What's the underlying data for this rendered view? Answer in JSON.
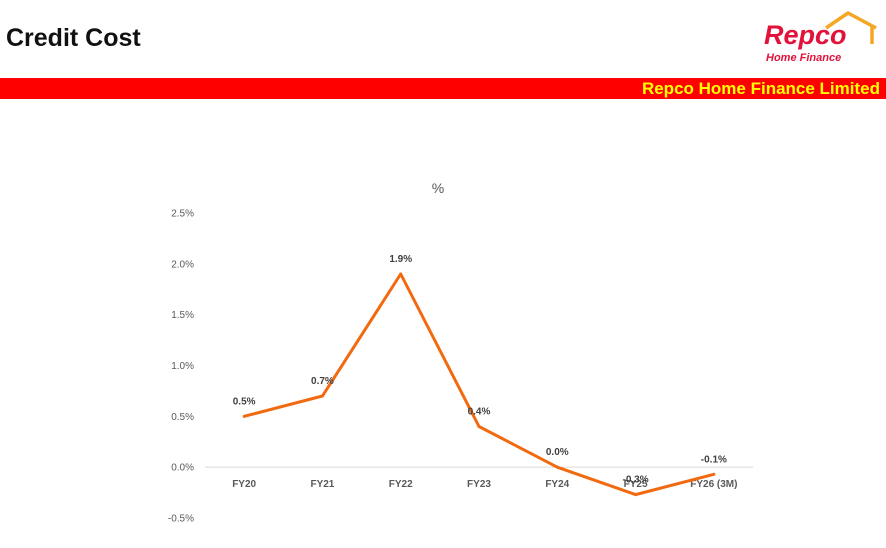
{
  "header": {
    "title": "Credit Cost",
    "company_band": "Repco Home Finance Limited"
  },
  "logo": {
    "name": "Repco",
    "tagline": "Home Finance",
    "icon": "house-roof-icon"
  },
  "colors": {
    "band": "#ff0000",
    "band_text": "#ffff00",
    "brand_red": "#e2123a",
    "line": "#f26a10"
  },
  "chart_data": {
    "type": "line",
    "title": "%",
    "categories": [
      "FY20",
      "FY21",
      "FY22",
      "FY23",
      "FY24",
      "FY25",
      "FY26 (3M)"
    ],
    "series": [
      {
        "values": [
          0.5,
          0.7,
          1.9,
          0.4,
          0.0,
          -0.27,
          -0.07
        ]
      }
    ],
    "data_labels": [
      "0.5%",
      "0.7%",
      "1.9%",
      "0.4%",
      "0.0%",
      "-0.3%",
      "-0.1%"
    ],
    "ylim": [
      -0.5,
      2.5
    ],
    "yticks": [
      2.5,
      2.0,
      1.5,
      1.0,
      0.5,
      0.0,
      -0.5
    ],
    "ytick_labels": [
      "2.5%",
      "2.0%",
      "1.5%",
      "1.0%",
      "0.5%",
      "0.0%",
      "-0.5%"
    ],
    "grid": false,
    "legend": "none"
  }
}
